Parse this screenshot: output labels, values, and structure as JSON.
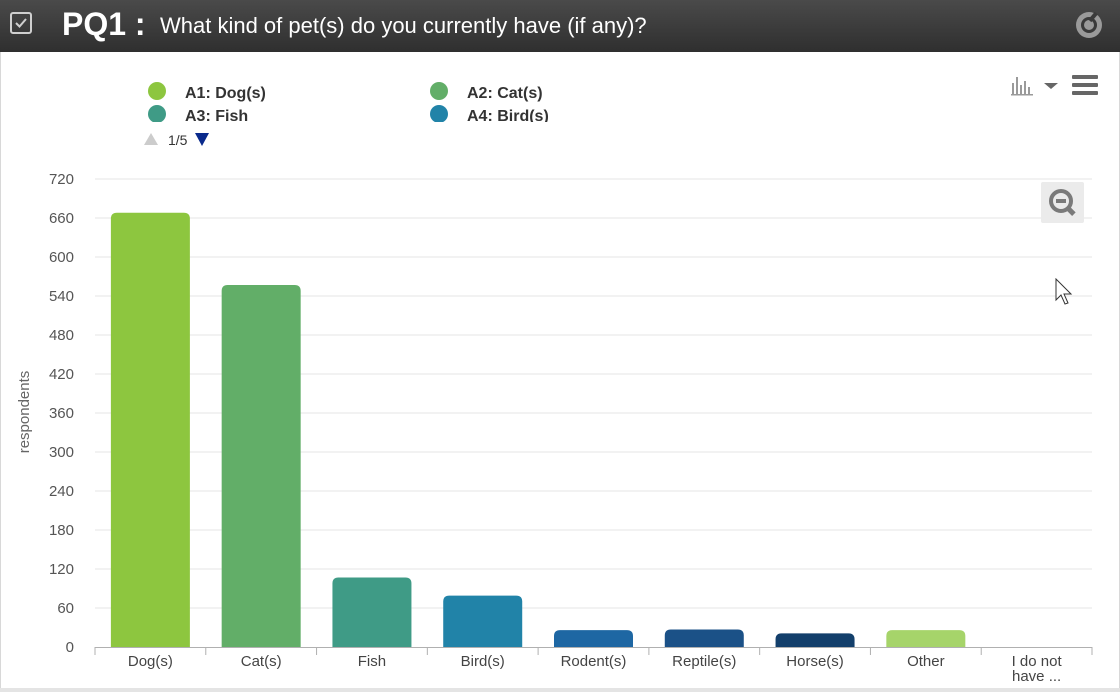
{
  "header": {
    "question_code": "PQ1 :",
    "question_text": "What kind of pet(s) do you currently have (if any)?"
  },
  "legend": {
    "items": [
      {
        "label": "A1: Dog(s)",
        "color": "#8dc63f"
      },
      {
        "label": "A2: Cat(s)",
        "color": "#62ae68"
      },
      {
        "label": "A3: Fish",
        "color": "#3f9b86"
      },
      {
        "label": "A4: Bird(s)",
        "color": "#2183a8"
      }
    ],
    "pager": "1/5"
  },
  "icons": {
    "check": "checkbox-checked-icon",
    "target": "target-icon",
    "chart_type": "bar-chart-icon",
    "menu": "hamburger-menu-icon",
    "zoom": "zoom-out-icon",
    "cursor": "mouse-cursor-icon"
  },
  "chart_data": {
    "type": "bar",
    "categories": [
      "Dog(s)",
      "Cat(s)",
      "Fish",
      "Bird(s)",
      "Rodent(s)",
      "Reptile(s)",
      "Horse(s)",
      "Other",
      "I do not have ..."
    ],
    "values": [
      668,
      557,
      107,
      79,
      26,
      27,
      21,
      26,
      0
    ],
    "colors": [
      "#8dc63f",
      "#62ae68",
      "#3f9b86",
      "#2183a8",
      "#1e67a3",
      "#1b5187",
      "#133f6b",
      "#a6d46a",
      "#8dc63f"
    ],
    "ylabel": "respondents",
    "xlabel": "",
    "ylim": [
      0,
      720
    ],
    "yticks": [
      0,
      60,
      120,
      180,
      240,
      300,
      360,
      420,
      480,
      540,
      600,
      660,
      720
    ],
    "grid": true
  }
}
